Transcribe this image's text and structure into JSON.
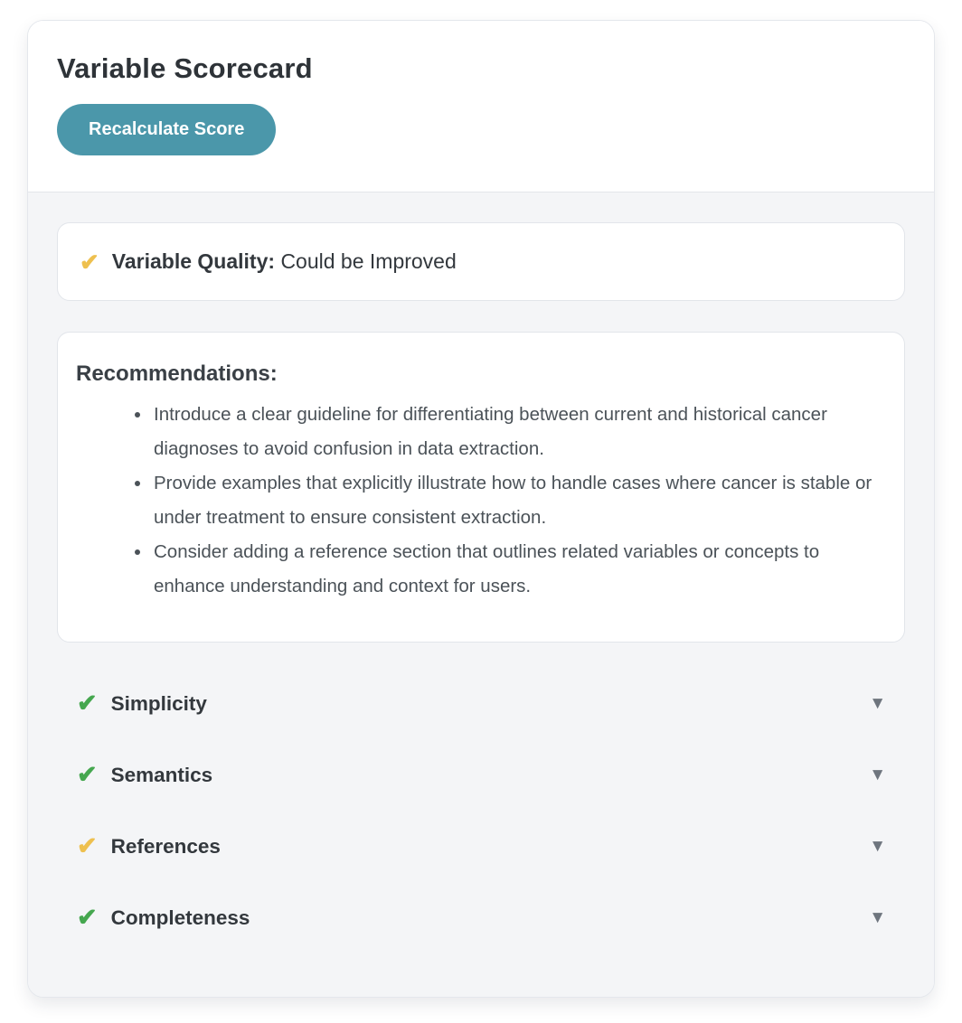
{
  "header": {
    "title": "Variable Scorecard",
    "recalculate_button": "Recalculate Score"
  },
  "icons": {
    "check": "✔",
    "collapse": "▼"
  },
  "colors": {
    "accent_teal": "#4b97aa",
    "check_pass_green": "#45a74f",
    "check_warn_yellow": "#eec04f",
    "body_background": "#f4f5f7"
  },
  "quality": {
    "label": "Variable Quality:",
    "value": "Could be Improved",
    "status": "warn"
  },
  "recommendations": {
    "heading": "Recommendations:",
    "items": [
      "Introduce a clear guideline for differentiating between current and historical cancer diagnoses to avoid confusion in data extraction.",
      "Provide examples that explicitly illustrate how to handle cases where cancer is stable or under treatment to ensure consistent extraction.",
      "Consider adding a reference section that outlines related variables or concepts to enhance understanding and context for users."
    ]
  },
  "sections": [
    {
      "label": "Simplicity",
      "status": "pass"
    },
    {
      "label": "Semantics",
      "status": "pass"
    },
    {
      "label": "References",
      "status": "warn"
    },
    {
      "label": "Completeness",
      "status": "pass"
    }
  ]
}
